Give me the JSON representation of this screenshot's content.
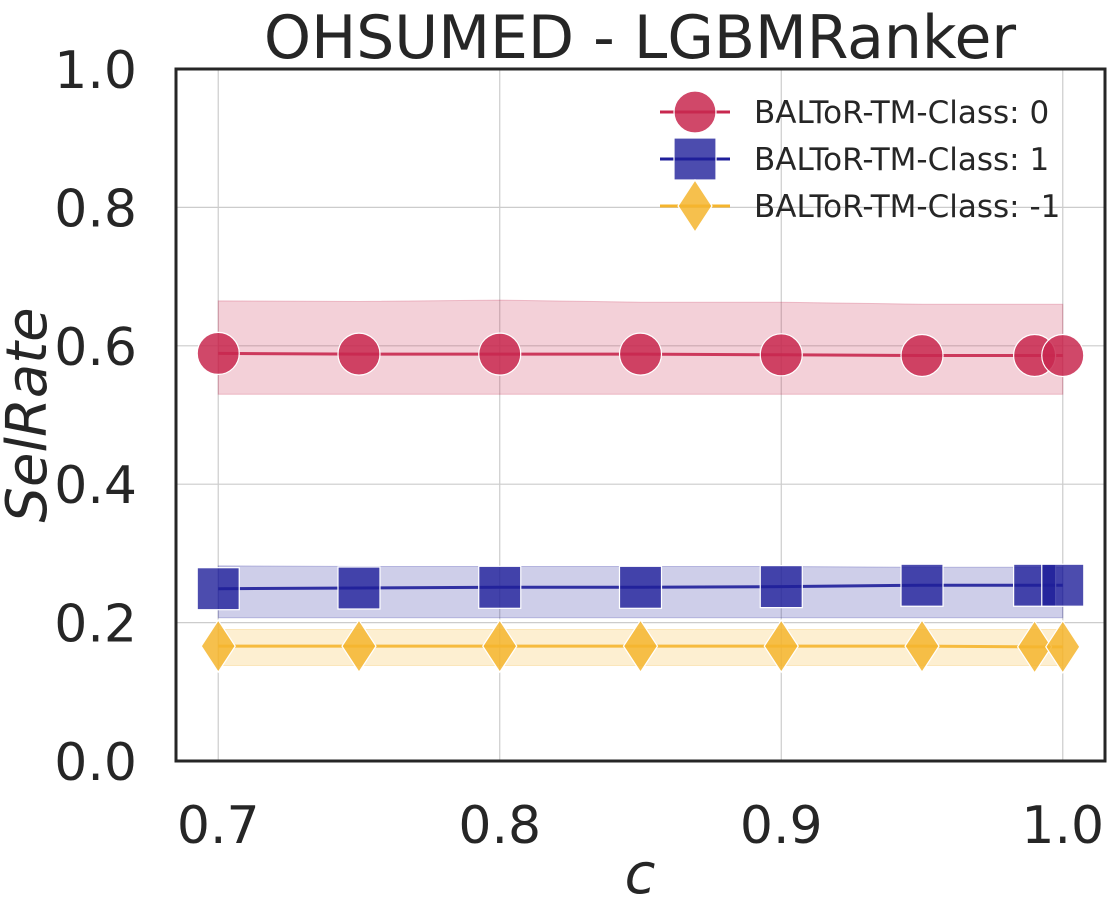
{
  "chart_data": {
    "type": "line",
    "title": "OHSUMED - LGBMRanker",
    "xlabel": "c",
    "ylabel": "SelRate",
    "xlim": [
      0.685,
      1.015
    ],
    "ylim": [
      0.0,
      1.0
    ],
    "xticks": [
      0.7,
      0.8,
      0.9,
      1.0
    ],
    "xtick_labels": [
      "0.7",
      "0.8",
      "0.9",
      "1.0"
    ],
    "yticks": [
      0.0,
      0.2,
      0.4,
      0.6,
      0.8,
      1.0
    ],
    "ytick_labels": [
      "0.0",
      "0.2",
      "0.4",
      "0.6",
      "0.8",
      "1.0"
    ],
    "grid": true,
    "legend_position": "top-right",
    "x": [
      0.7,
      0.75,
      0.8,
      0.85,
      0.9,
      0.95,
      0.99,
      1.0
    ],
    "series": [
      {
        "name": "BALToR-TM-Class: 0",
        "marker": "circle",
        "color": "#c8284f",
        "values": [
          0.589,
          0.588,
          0.588,
          0.588,
          0.587,
          0.586,
          0.586,
          0.586
        ],
        "band_lower": [
          0.53,
          0.53,
          0.53,
          0.53,
          0.53,
          0.53,
          0.53,
          0.53
        ],
        "band_upper": [
          0.665,
          0.664,
          0.666,
          0.663,
          0.663,
          0.66,
          0.66,
          0.66
        ]
      },
      {
        "name": "BALToR-TM-Class: 1",
        "marker": "square",
        "color": "#1f1f9a",
        "values": [
          0.249,
          0.25,
          0.251,
          0.251,
          0.252,
          0.254,
          0.254,
          0.254
        ],
        "band_lower": [
          0.207,
          0.207,
          0.207,
          0.207,
          0.207,
          0.207,
          0.207,
          0.207
        ],
        "band_upper": [
          0.282,
          0.281,
          0.281,
          0.281,
          0.281,
          0.28,
          0.28,
          0.28
        ]
      },
      {
        "name": "BALToR-TM-Class: -1",
        "marker": "diamond",
        "color": "#f5b52e",
        "values": [
          0.166,
          0.166,
          0.166,
          0.166,
          0.166,
          0.166,
          0.165,
          0.165
        ],
        "band_lower": [
          0.138,
          0.138,
          0.138,
          0.138,
          0.138,
          0.138,
          0.138,
          0.138
        ],
        "band_upper": [
          0.19,
          0.19,
          0.19,
          0.19,
          0.19,
          0.19,
          0.19,
          0.19
        ]
      }
    ]
  }
}
